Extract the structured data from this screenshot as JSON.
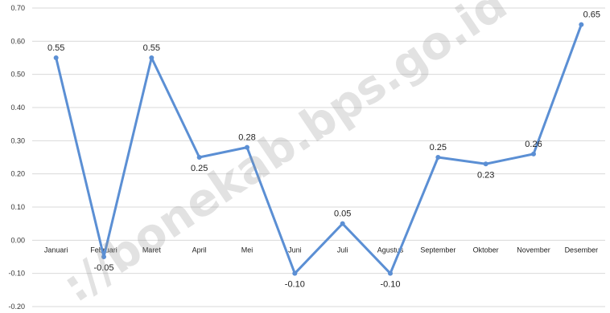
{
  "chart_data": {
    "type": "line",
    "title": "",
    "xlabel": "",
    "ylabel": "",
    "categories": [
      "Januari",
      "Februari",
      "Maret",
      "April",
      "Mei",
      "Juni",
      "Juli",
      "Agustus",
      "September",
      "Oktober",
      "November",
      "Desember"
    ],
    "series": [
      {
        "values": [
          0.55,
          -0.05,
          0.55,
          0.25,
          0.28,
          -0.1,
          0.05,
          -0.1,
          0.25,
          0.23,
          0.26,
          0.65
        ]
      }
    ],
    "data_labels": [
      "0.55",
      "-0.05",
      "0.55",
      "0.25",
      "0.28",
      "-0.10",
      "0.05",
      "-0.10",
      "0.25",
      "0.23",
      "0.26",
      "0.65"
    ],
    "ylim": [
      -0.2,
      0.7
    ],
    "yticks": [
      "0.70",
      "0.60",
      "0.50",
      "0.40",
      "0.30",
      "0.20",
      "0.10",
      "0.00",
      "-0.10",
      "-0.20"
    ],
    "yticks_values": [
      0.7,
      0.6,
      0.5,
      0.4,
      0.3,
      0.2,
      0.1,
      0.0,
      -0.1,
      -0.2
    ],
    "grid": true,
    "legend": "none",
    "line_color": "#5b8fd4"
  },
  "watermark": "://bonekab.bps.go.id"
}
